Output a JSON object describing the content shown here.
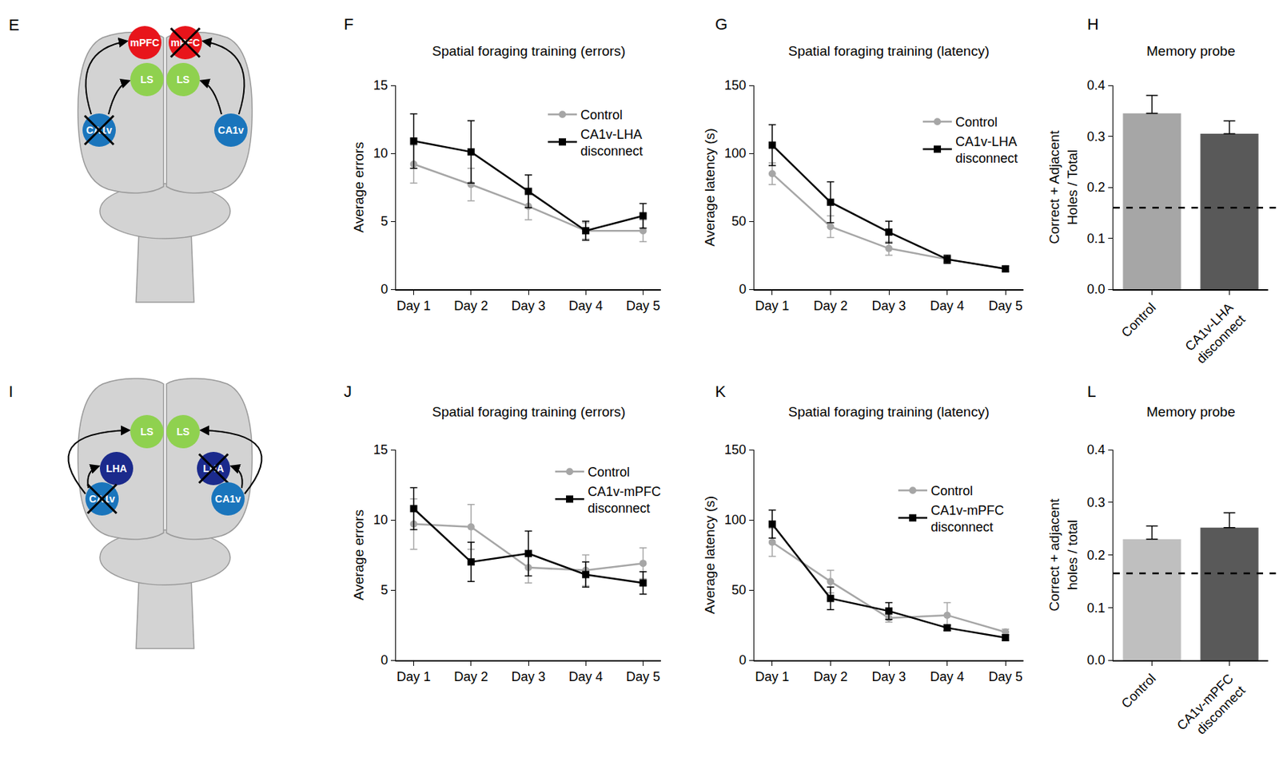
{
  "chart_data": [
    {
      "panel": "F",
      "type": "line",
      "title": "Spatial foraging training (errors)",
      "y_label": "Average errors",
      "categories": [
        "Day 1",
        "Day 2",
        "Day 3",
        "Day 4",
        "Day 5"
      ],
      "series": [
        {
          "name": "Control",
          "color": "#a6a6a6",
          "marker": "circle",
          "values": [
            9.2,
            7.7,
            6.1,
            4.3,
            4.3
          ],
          "errors": [
            1.4,
            1.2,
            1.0,
            0.6,
            0.8
          ]
        },
        {
          "name": "CA1v-LHA disconnect",
          "color": "#000000",
          "marker": "square",
          "values": [
            10.9,
            10.1,
            7.2,
            4.3,
            5.4
          ],
          "errors": [
            2.0,
            2.3,
            1.2,
            0.7,
            0.9
          ]
        }
      ],
      "ylim": [
        0,
        15
      ],
      "yticks": [
        0,
        5,
        10,
        15
      ],
      "grid": false,
      "legend": "upper right"
    },
    {
      "panel": "G",
      "type": "line",
      "title": "Spatial foraging training (latency)",
      "y_label": "Average latency (s)",
      "categories": [
        "Day 1",
        "Day 2",
        "Day 3",
        "Day 4",
        "Day 5"
      ],
      "series": [
        {
          "name": "Control",
          "color": "#a6a6a6",
          "marker": "circle",
          "values": [
            85,
            46,
            30,
            22,
            15
          ],
          "errors": [
            8,
            8,
            5,
            2,
            2
          ]
        },
        {
          "name": "CA1v-LHA disconnect",
          "color": "#000000",
          "marker": "square",
          "values": [
            106,
            64,
            42,
            22,
            15
          ],
          "errors": [
            15,
            15,
            8,
            3,
            2
          ]
        }
      ],
      "ylim": [
        0,
        150
      ],
      "yticks": [
        0,
        50,
        100,
        150
      ],
      "grid": false,
      "legend": "upper right"
    },
    {
      "panel": "H",
      "type": "bar",
      "title": "Memory probe",
      "y_label": "Correct + Adjacent Holes / Total",
      "categories": [
        "Control",
        "CA1v-LHA disconnect"
      ],
      "values": [
        0.345,
        0.305
      ],
      "errors": [
        0.035,
        0.025
      ],
      "colors": [
        "#a6a6a6",
        "#595959"
      ],
      "chance": 0.16,
      "ylim": [
        0,
        0.4
      ],
      "yticks": [
        {
          "value": 0,
          "label": "0.0"
        },
        0.1,
        0.2,
        0.3,
        0.4
      ],
      "grid": false
    },
    {
      "panel": "J",
      "type": "line",
      "title": "Spatial foraging training (errors)",
      "y_label": "Average errors",
      "categories": [
        "Day 1",
        "Day 2",
        "Day 3",
        "Day 4",
        "Day 5"
      ],
      "series": [
        {
          "name": "Control",
          "color": "#a6a6a6",
          "marker": "circle",
          "values": [
            9.7,
            9.5,
            6.6,
            6.4,
            6.9
          ],
          "errors": [
            1.8,
            1.6,
            1.1,
            1.1,
            1.1
          ]
        },
        {
          "name": "CA1v-mPFC disconnect",
          "color": "#000000",
          "marker": "square",
          "values": [
            10.8,
            7.0,
            7.6,
            6.1,
            5.5
          ],
          "errors": [
            1.5,
            1.4,
            1.6,
            0.9,
            0.8
          ]
        }
      ],
      "ylim": [
        0,
        15
      ],
      "yticks": [
        0,
        5,
        10,
        15
      ],
      "grid": false,
      "legend": "upper right"
    },
    {
      "panel": "K",
      "type": "line",
      "title": "Spatial foraging training (latency)",
      "y_label": "Average latency (s)",
      "categories": [
        "Day 1",
        "Day 2",
        "Day 3",
        "Day 4",
        "Day 5"
      ],
      "series": [
        {
          "name": "Control",
          "color": "#a6a6a6",
          "marker": "circle",
          "values": [
            84,
            56,
            30,
            32,
            20
          ],
          "errors": [
            10,
            8,
            3,
            9,
            2
          ]
        },
        {
          "name": "CA1v-mPFC disconnect",
          "color": "#000000",
          "marker": "square",
          "values": [
            97,
            44,
            35,
            23,
            16
          ],
          "errors": [
            10,
            8,
            6,
            2,
            2
          ]
        }
      ],
      "ylim": [
        0,
        150
      ],
      "yticks": [
        0,
        50,
        100,
        150
      ],
      "grid": false,
      "legend": "upper right"
    },
    {
      "panel": "L",
      "type": "bar",
      "title": "Memory probe",
      "y_label": "Correct + adjacent holes / total",
      "categories": [
        "Control",
        "CA1v-mPFC disconnect"
      ],
      "values": [
        0.23,
        0.252
      ],
      "errors": [
        0.025,
        0.028
      ],
      "colors": [
        "#bfbfbf",
        "#595959"
      ],
      "chance": 0.165,
      "ylim": [
        0,
        0.4
      ],
      "yticks": [
        {
          "value": 0,
          "label": "0.0"
        },
        0.1,
        0.2,
        0.3,
        0.4
      ],
      "grid": false
    }
  ],
  "diagrams": [
    {
      "panel": "E",
      "nodes": [
        {
          "label": "mPFC",
          "color": "#e8141b",
          "crossed": false
        },
        {
          "label": "mPFC",
          "color": "#e8141b",
          "crossed": true
        },
        {
          "label": "LS",
          "color": "#8fd14f",
          "crossed": false
        },
        {
          "label": "LS",
          "color": "#8fd14f",
          "crossed": false
        },
        {
          "label": "CA1v",
          "color": "#1a75bc",
          "crossed": true
        },
        {
          "label": "CA1v",
          "color": "#1a75bc",
          "crossed": false
        }
      ]
    },
    {
      "panel": "I",
      "nodes": [
        {
          "label": "LS",
          "color": "#8fd14f",
          "crossed": false
        },
        {
          "label": "LS",
          "color": "#8fd14f",
          "crossed": false
        },
        {
          "label": "LHA",
          "color": "#1b2a8c",
          "crossed": false
        },
        {
          "label": "LHA",
          "color": "#1b2a8c",
          "crossed": true
        },
        {
          "label": "CA1v",
          "color": "#1a75bc",
          "crossed": true
        },
        {
          "label": "CA1v",
          "color": "#1a75bc",
          "crossed": false
        }
      ]
    }
  ]
}
